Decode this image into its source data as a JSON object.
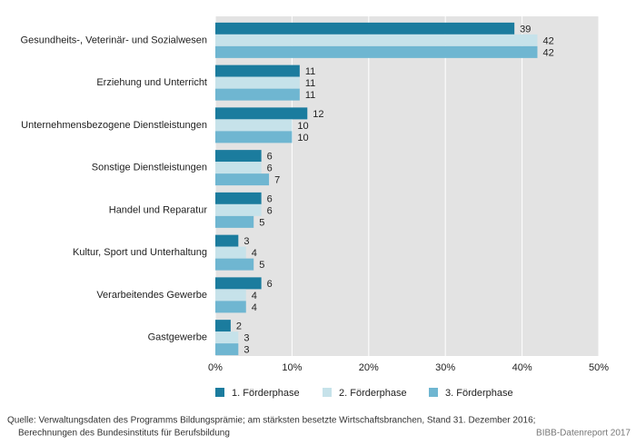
{
  "chart_data": {
    "type": "hbar",
    "categories": [
      "Gesundheits-, Veterinär- und Sozialwesen",
      "Erziehung und Unterricht",
      "Unternehmensbezogene Dienstleistungen",
      "Sonstige Dienstleistungen",
      "Handel und Reparatur",
      "Kultur, Sport und Unterhaltung",
      "Verarbeitendes Gewerbe",
      "Gastgewerbe"
    ],
    "series": [
      {
        "name": "1. Förderphase",
        "color": "#1b7c9e",
        "values": [
          39,
          11,
          12,
          6,
          6,
          3,
          6,
          2
        ]
      },
      {
        "name": "2. Förderphase",
        "color": "#c6e2ea",
        "values": [
          42,
          11,
          10,
          6,
          6,
          4,
          4,
          3
        ]
      },
      {
        "name": "3. Förderphase",
        "color": "#6fb6d1",
        "values": [
          42,
          11,
          10,
          7,
          5,
          5,
          4,
          3
        ]
      }
    ],
    "xlim": [
      0,
      50
    ],
    "xticks": [
      {
        "value": 0,
        "label": "0%"
      },
      {
        "value": 10,
        "label": "10%"
      },
      {
        "value": 20,
        "label": "20%"
      },
      {
        "value": 30,
        "label": "30%"
      },
      {
        "value": 40,
        "label": "40%"
      },
      {
        "value": 50,
        "label": "50%"
      }
    ],
    "grid": true,
    "source": [
      "Quelle: Verwaltungsdaten des Programms Bildungsprämie; am stärksten besetzte Wirtschaftsbranchen, Stand 31. Dezember 2016;",
      "Berechnungen des Bundesinstituts für Berufsbildung"
    ],
    "credit": "BIBB-Datenreport 2017"
  }
}
